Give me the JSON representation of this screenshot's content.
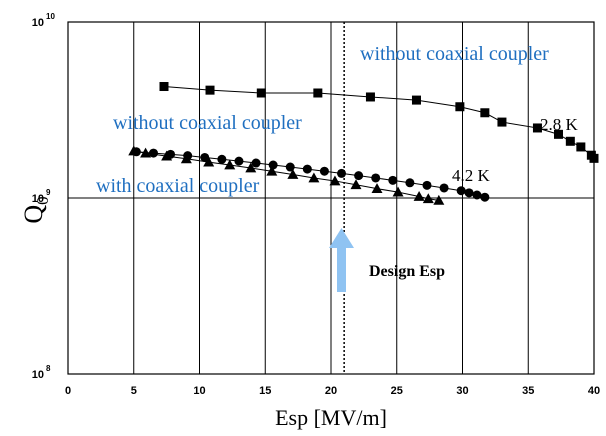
{
  "chart_data": {
    "type": "scatter",
    "xlabel": "Esp [MV/m]",
    "ylabel": "Q",
    "ylabel_sub": "0",
    "xlim": [
      0,
      40
    ],
    "ylim": [
      100000000.0,
      10000000000.0
    ],
    "yscale": "log",
    "grid": true,
    "x_ticks": [
      "0",
      "5",
      "10",
      "15",
      "20",
      "25",
      "30",
      "35",
      "40"
    ],
    "y_ticks": [
      {
        "value": 10000000000.0,
        "base": "10",
        "exp": "10"
      },
      {
        "value": 1000000000.0,
        "base": "10",
        "exp": "9"
      },
      {
        "value": 100000000.0,
        "base": "10",
        "exp": "8"
      }
    ],
    "design_line_x": 21,
    "series": [
      {
        "marker": "square",
        "x": [
          7.3,
          10.8,
          14.7,
          19.0,
          23.0,
          26.5,
          29.8,
          31.7,
          33.0,
          35.7,
          37.3,
          38.2,
          39.0,
          39.8,
          40.0
        ],
        "y": [
          4300000000.0,
          4100000000.0,
          3950000000.0,
          3950000000.0,
          3750000000.0,
          3600000000.0,
          3300000000.0,
          3050000000.0,
          2700000000.0,
          2500000000.0,
          2300000000.0,
          2100000000.0,
          1950000000.0,
          1750000000.0,
          1680000000.0
        ]
      },
      {
        "marker": "circle",
        "x": [
          5.2,
          6.5,
          7.8,
          9.1,
          10.4,
          11.7,
          13.0,
          14.3,
          15.6,
          16.9,
          18.2,
          19.5,
          20.8,
          22.1,
          23.4,
          24.7,
          26.0,
          27.3,
          28.6,
          29.9,
          30.5,
          31.1,
          31.7
        ],
        "y": [
          1830000000.0,
          1800000000.0,
          1770000000.0,
          1740000000.0,
          1700000000.0,
          1660000000.0,
          1620000000.0,
          1580000000.0,
          1540000000.0,
          1500000000.0,
          1460000000.0,
          1420000000.0,
          1380000000.0,
          1340000000.0,
          1300000000.0,
          1260000000.0,
          1220000000.0,
          1180000000.0,
          1140000000.0,
          1100000000.0,
          1070000000.0,
          1040000000.0,
          1010000000.0
        ]
      },
      {
        "marker": "triangle",
        "x": [
          5.0,
          5.9,
          7.5,
          9.0,
          10.7,
          12.3,
          13.9,
          15.5,
          17.1,
          18.7,
          20.3,
          21.9,
          23.5,
          25.1,
          26.7,
          27.4,
          28.2
        ],
        "y": [
          1850000000.0,
          1800000000.0,
          1730000000.0,
          1670000000.0,
          1600000000.0,
          1540000000.0,
          1480000000.0,
          1420000000.0,
          1360000000.0,
          1300000000.0,
          1250000000.0,
          1190000000.0,
          1130000000.0,
          1080000000.0,
          1020000000.0,
          990000000.0,
          970000000.0
        ]
      }
    ],
    "annotations": [
      {
        "text": "without coaxial coupler",
        "style": "blue"
      },
      {
        "text": "2.8 K",
        "style": "black"
      },
      {
        "text": "without coaxial coupler",
        "style": "blue"
      },
      {
        "text": "4.2 K",
        "style": "black"
      },
      {
        "text": "with coaxial coupler",
        "style": "blue"
      },
      {
        "text": "Design Esp",
        "style": "design"
      }
    ],
    "colors": {
      "annotation_blue": "#1f6fc0",
      "arrow": "#8fc3f2",
      "markers": "#000000"
    }
  }
}
